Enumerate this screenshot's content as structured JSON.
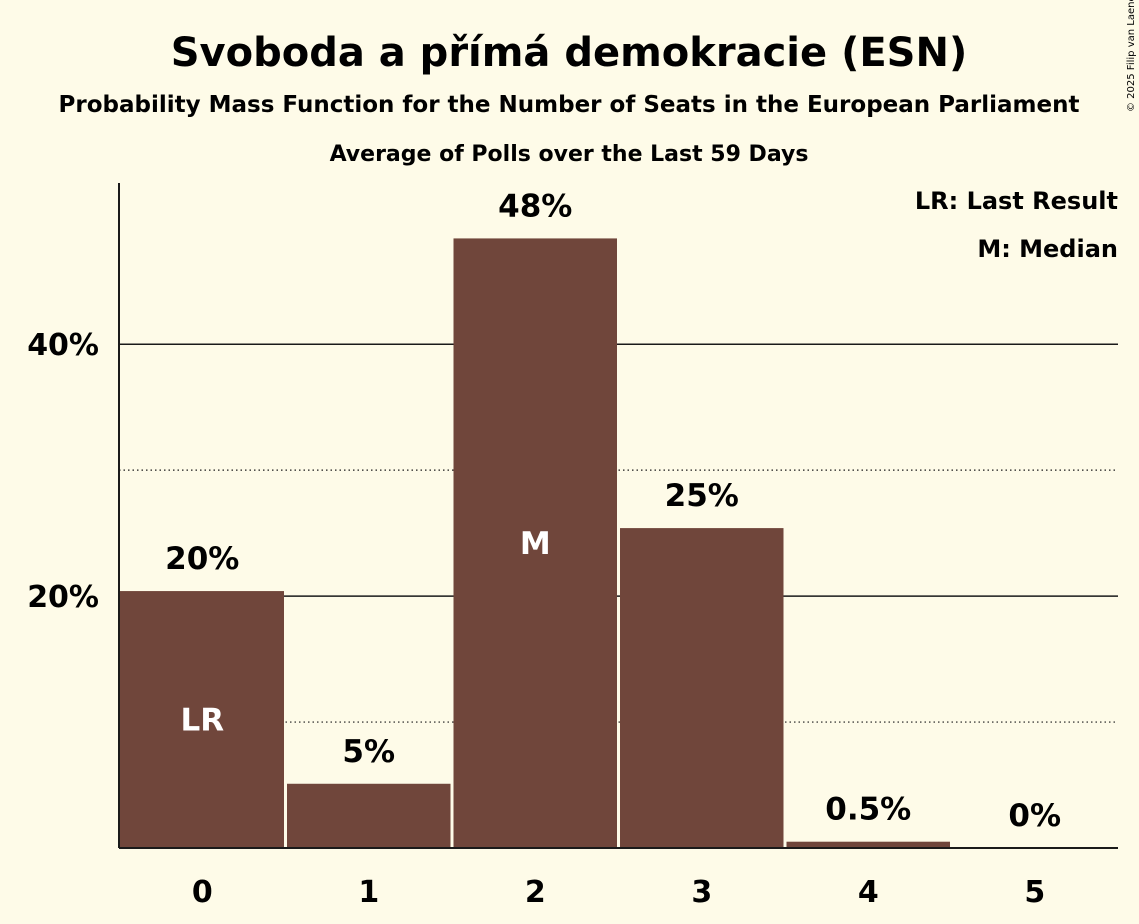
{
  "chart_data": {
    "type": "bar",
    "title": "Svoboda a přímá demokracie (ESN)",
    "subtitle": "Probability Mass Function for the Number of Seats in the European Parliament",
    "subtitle2": "Average of Polls over the Last 59 Days",
    "categories": [
      "0",
      "1",
      "2",
      "3",
      "4",
      "5"
    ],
    "values": [
      20.4,
      5.1,
      48.4,
      25.4,
      0.5,
      0
    ],
    "value_labels": [
      "20%",
      "5%",
      "48%",
      "25%",
      "0.5%",
      "0%"
    ],
    "bar_markers": [
      "LR",
      "",
      "M",
      "",
      "",
      ""
    ],
    "ylim": [
      0,
      52.8
    ],
    "yticks": [
      20,
      40
    ],
    "ytick_labels": [
      "20%",
      "40%"
    ],
    "minor_gridlines": [
      10,
      30
    ],
    "grid": true,
    "legend": {
      "position": "top-right",
      "entries": [
        "LR: Last Result",
        "M: Median"
      ]
    },
    "colors": {
      "bar": "#70463b",
      "background": "#fefbe8",
      "text": "#1a1a1a"
    }
  },
  "copyright": "© 2025 Filip van Laenen"
}
